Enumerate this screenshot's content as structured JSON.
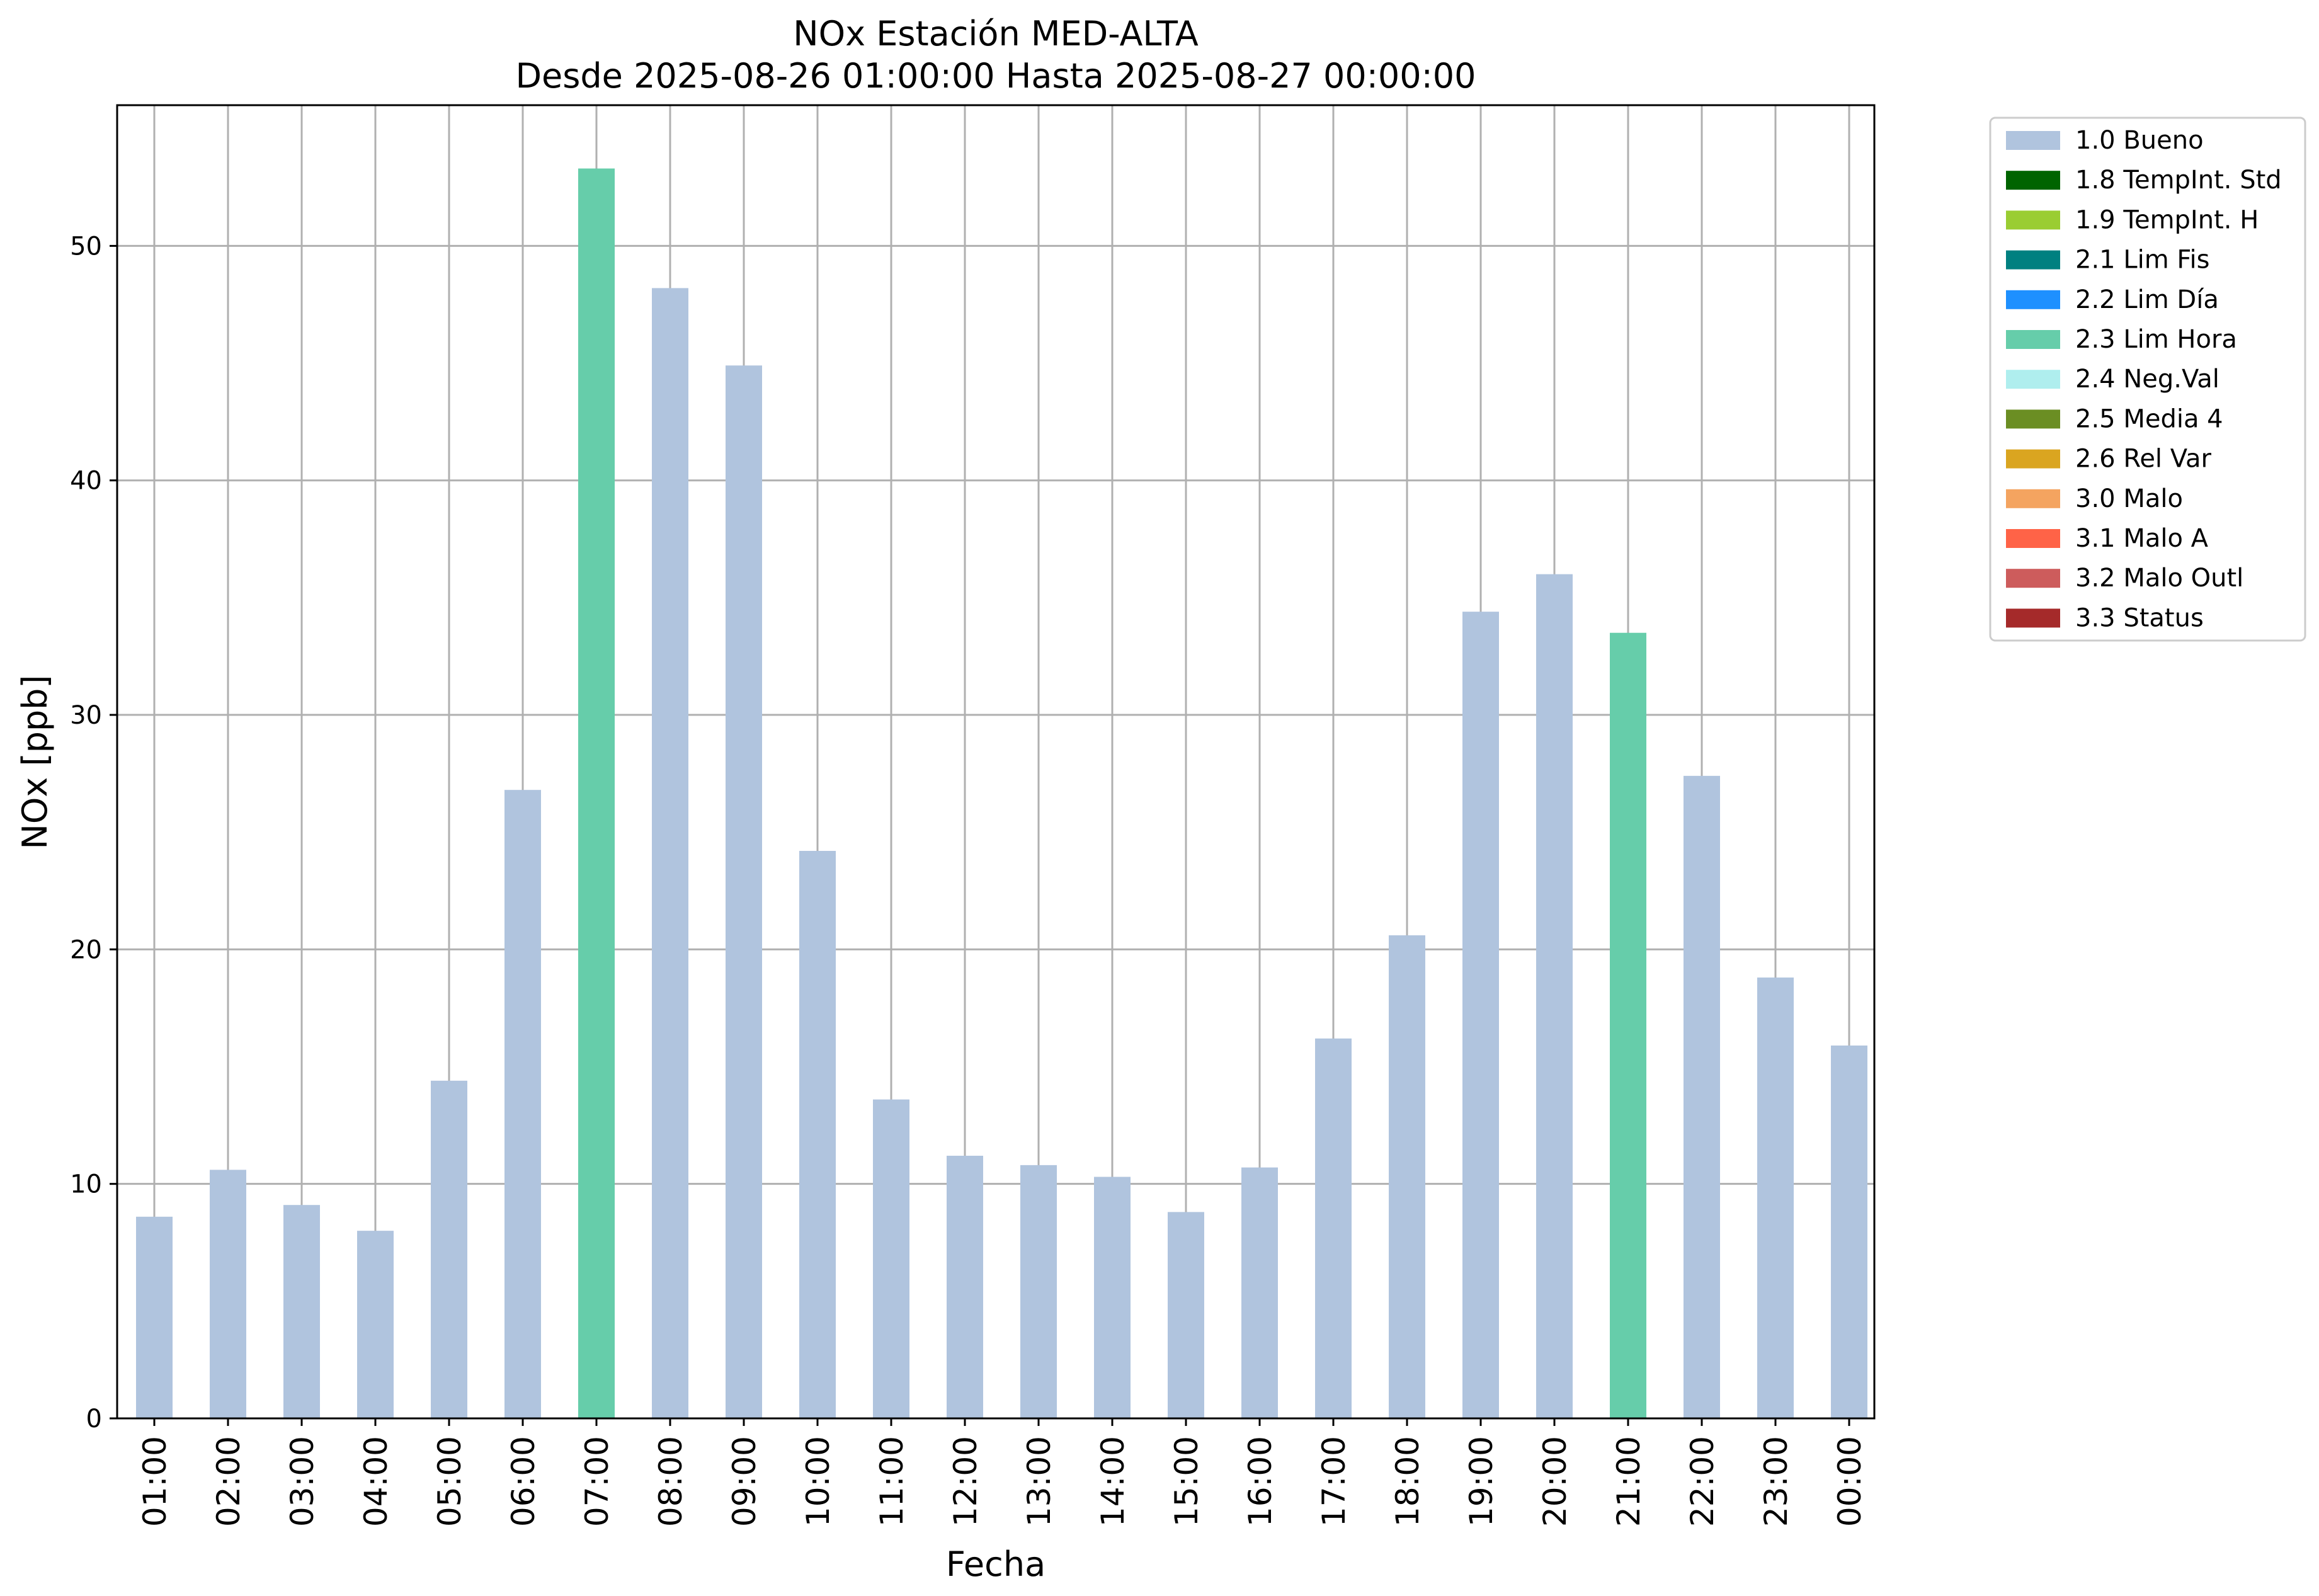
{
  "chart_data": {
    "type": "bar",
    "title": "NOx Estación MED-ALTA",
    "subtitle": "Desde 2025-08-26 01:00:00 Hasta 2025-08-27 00:00:00",
    "xlabel": "Fecha",
    "ylabel": "NOx [ppb]",
    "ylim": [
      0,
      56
    ],
    "yticks": [
      0,
      10,
      20,
      30,
      40,
      50
    ],
    "grid": true,
    "legend_position": "outside-right-top",
    "categories": [
      "01:00",
      "02:00",
      "03:00",
      "04:00",
      "05:00",
      "06:00",
      "07:00",
      "08:00",
      "09:00",
      "10:00",
      "11:00",
      "12:00",
      "13:00",
      "14:00",
      "15:00",
      "16:00",
      "17:00",
      "18:00",
      "19:00",
      "20:00",
      "21:00",
      "22:00",
      "23:00",
      "00:00"
    ],
    "values": [
      8.6,
      10.6,
      9.1,
      8.0,
      14.4,
      26.8,
      53.3,
      48.2,
      44.9,
      24.2,
      13.6,
      11.2,
      10.8,
      10.3,
      8.8,
      10.7,
      16.2,
      20.6,
      34.4,
      36.0,
      33.5,
      27.4,
      18.8,
      15.9
    ],
    "flags": [
      "1.0 Bueno",
      "1.0 Bueno",
      "1.0 Bueno",
      "1.0 Bueno",
      "1.0 Bueno",
      "1.0 Bueno",
      "2.3 Lim Hora",
      "1.0 Bueno",
      "1.0 Bueno",
      "1.0 Bueno",
      "1.0 Bueno",
      "1.0 Bueno",
      "1.0 Bueno",
      "1.0 Bueno",
      "1.0 Bueno",
      "1.0 Bueno",
      "1.0 Bueno",
      "1.0 Bueno",
      "1.0 Bueno",
      "1.0 Bueno",
      "2.3 Lim Hora",
      "1.0 Bueno",
      "1.0 Bueno",
      "1.0 Bueno"
    ],
    "legend": [
      {
        "name": "1.0 Bueno",
        "color": "#b0c4de"
      },
      {
        "name": "1.8 TempInt. Std",
        "color": "#006400"
      },
      {
        "name": "1.9 TempInt. H",
        "color": "#9acd32"
      },
      {
        "name": "2.1 Lim Fis",
        "color": "#008080"
      },
      {
        "name": "2.2 Lim Día",
        "color": "#1e90ff"
      },
      {
        "name": "2.3 Lim Hora",
        "color": "#66cdaa"
      },
      {
        "name": "2.4 Neg.Val",
        "color": "#afeeee"
      },
      {
        "name": "2.5 Media 4",
        "color": "#6b8e23"
      },
      {
        "name": "2.6 Rel Var",
        "color": "#daa520"
      },
      {
        "name": "3.0 Malo",
        "color": "#f4a460"
      },
      {
        "name": "3.1 Malo A",
        "color": "#ff6347"
      },
      {
        "name": "3.2 Malo Outl",
        "color": "#cd5c5c"
      },
      {
        "name": "3.3 Status",
        "color": "#a52a2a"
      }
    ]
  }
}
